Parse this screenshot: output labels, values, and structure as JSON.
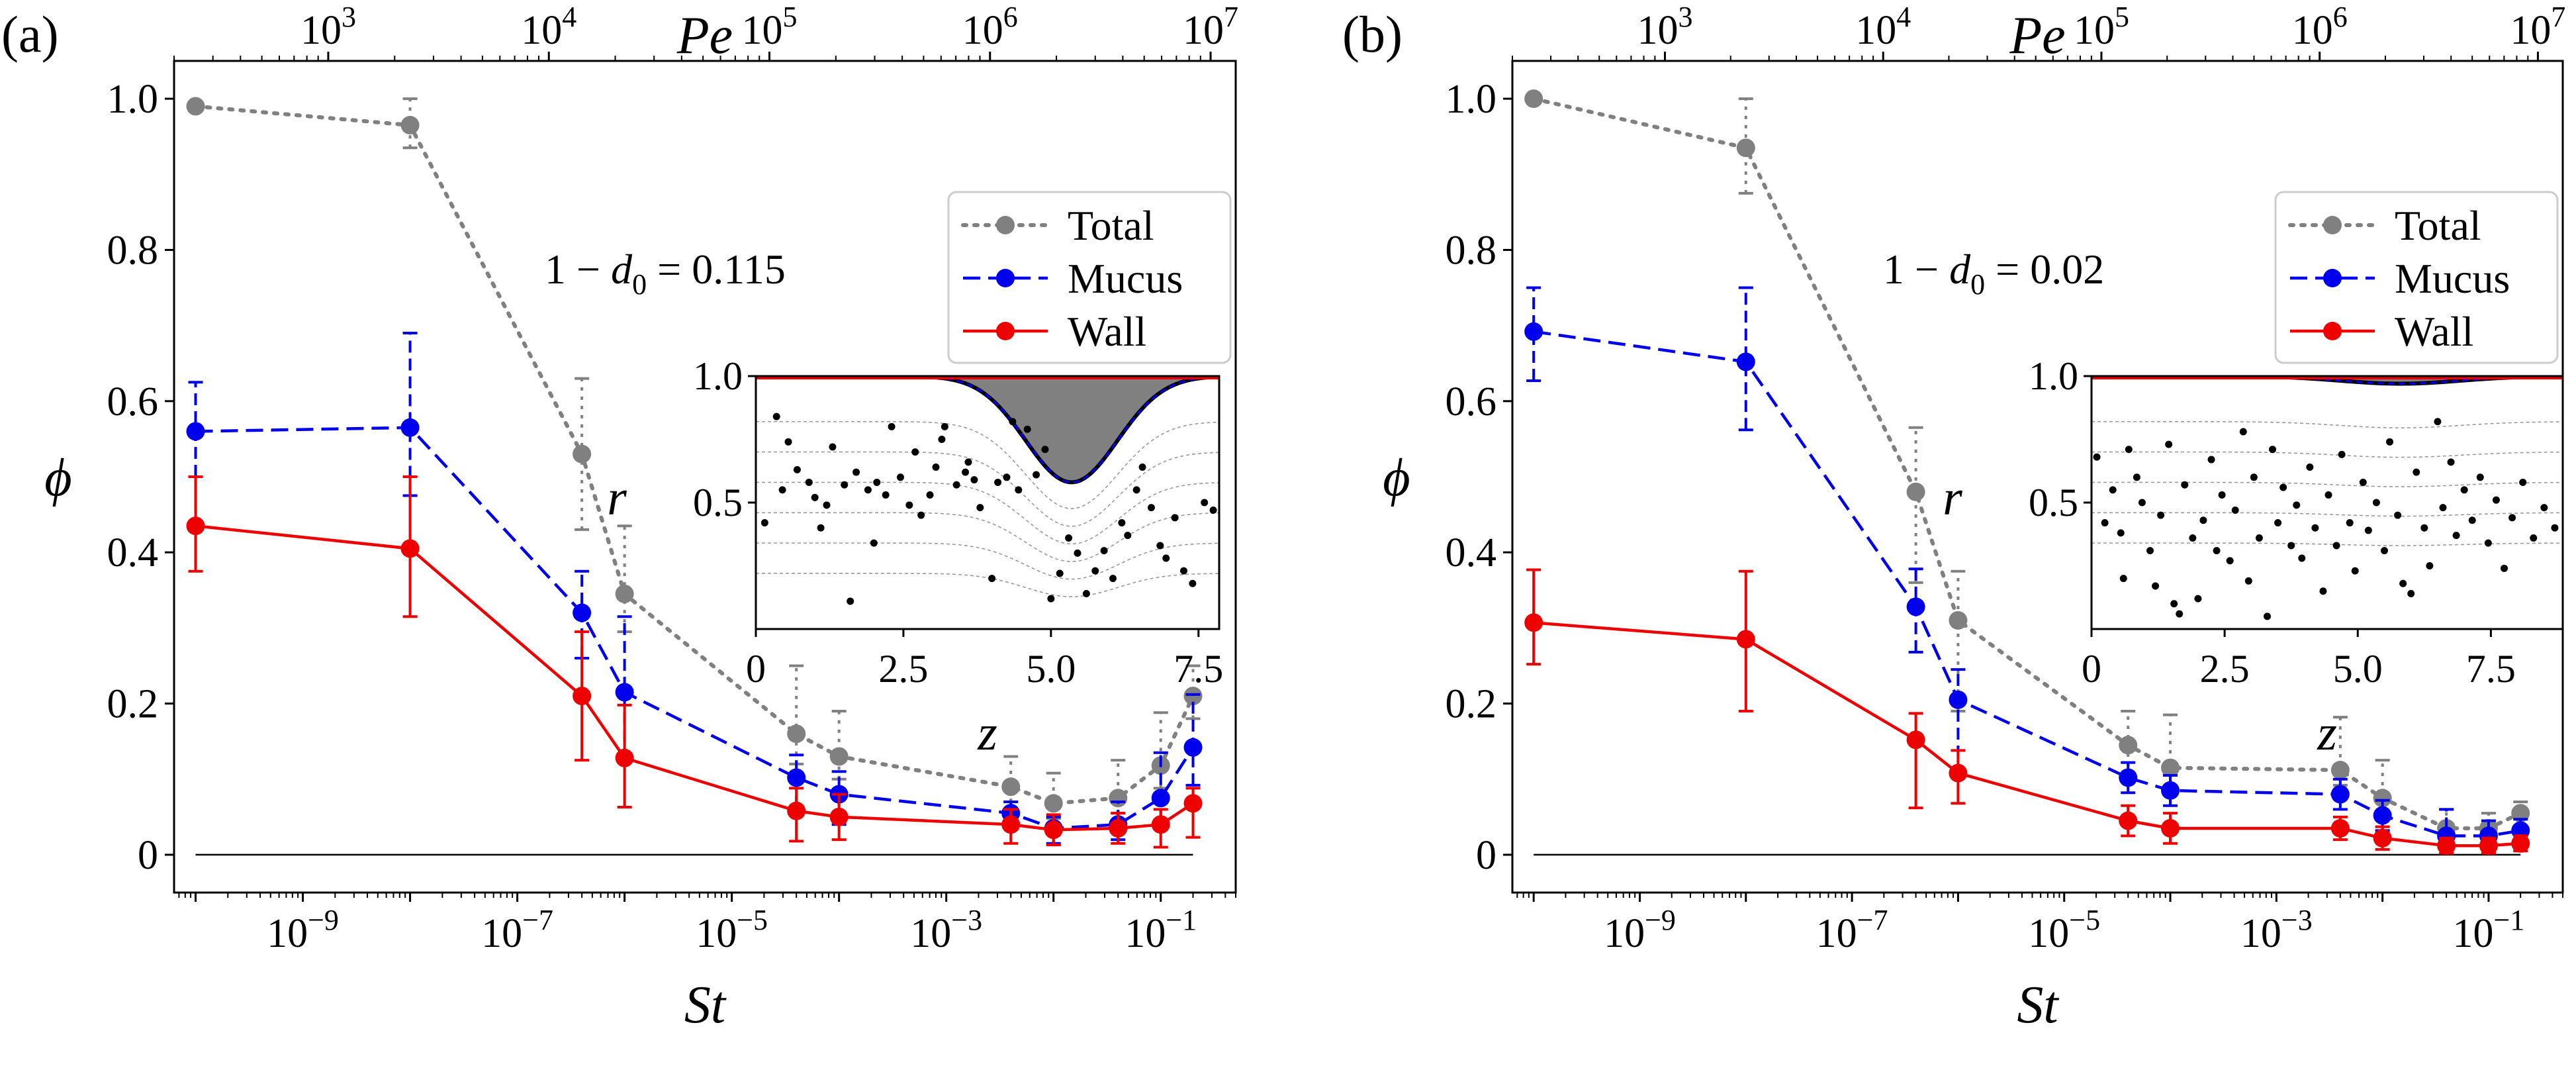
{
  "chart_data": [
    {
      "type": "line",
      "panel_label": "(a)",
      "xlabel": "St",
      "ylabel": "ϕ",
      "top_xlabel": "Pe",
      "x_scale": "log",
      "top_x_scale": "log",
      "xlim": [
        6.3e-11,
        0.5
      ],
      "ylim": [
        -0.05,
        1.05
      ],
      "top_xlim": [
        200,
        13000000.0
      ],
      "x_ticks": [
        1e-09,
        1e-07,
        1e-05,
        0.001,
        0.1
      ],
      "x_tick_labels": [
        {
          "b": "10",
          "e": "−9"
        },
        {
          "b": "10",
          "e": "−7"
        },
        {
          "b": "10",
          "e": "−5"
        },
        {
          "b": "10",
          "e": "−3"
        },
        {
          "b": "10",
          "e": "−1"
        }
      ],
      "y_ticks": [
        0,
        0.2,
        0.4,
        0.6,
        0.8,
        1.0
      ],
      "y_tick_labels": [
        "0",
        "0.2",
        "0.4",
        "0.6",
        "0.8",
        "1.0"
      ],
      "top_ticks": [
        1000,
        10000,
        100000,
        1000000,
        10000000
      ],
      "top_tick_labels": [
        {
          "b": "10",
          "e": "3"
        },
        {
          "b": "10",
          "e": "4"
        },
        {
          "b": "10",
          "e": "5"
        },
        {
          "b": "10",
          "e": "6"
        },
        {
          "b": "10",
          "e": "7"
        }
      ],
      "annotation": {
        "prefix": "1 − ",
        "var": "d",
        "sub": "0",
        "suffix": " = 0.115"
      },
      "legend_position": "top-right",
      "grid": false,
      "x": [
        1e-10,
        1e-08,
        4e-07,
        1e-06,
        4e-05,
        0.0001,
        0.004,
        0.01,
        0.04,
        0.1,
        0.2
      ],
      "series": [
        {
          "name": "Total",
          "color": "#808080",
          "style": "dotted",
          "values": [
            0.99,
            0.965,
            0.53,
            0.345,
            0.16,
            0.13,
            0.09,
            0.068,
            0.075,
            0.118,
            0.21
          ],
          "err_low": [
            0.0,
            0.03,
            0.1,
            0.05,
            0.04,
            0.03,
            0.02,
            0.02,
            0.02,
            0.03,
            0.03
          ],
          "err_high": [
            0.0,
            0.035,
            0.1,
            0.09,
            0.09,
            0.06,
            0.04,
            0.04,
            0.05,
            0.07,
            0.04
          ]
        },
        {
          "name": "Mucus",
          "color": "#0000ee",
          "style": "dashed",
          "values": [
            0.56,
            0.565,
            0.32,
            0.215,
            0.102,
            0.08,
            0.055,
            0.035,
            0.04,
            0.075,
            0.142
          ],
          "err_low": [
            0.06,
            0.09,
            0.06,
            0.09,
            0.04,
            0.04,
            0.02,
            0.02,
            0.02,
            0.03,
            0.05
          ],
          "err_high": [
            0.065,
            0.125,
            0.055,
            0.1,
            0.03,
            0.03,
            0.015,
            0.015,
            0.03,
            0.06,
            0.07
          ]
        },
        {
          "name": "Wall",
          "color": "#ee0000",
          "style": "solid",
          "values": [
            0.435,
            0.405,
            0.21,
            0.128,
            0.058,
            0.05,
            0.04,
            0.033,
            0.035,
            0.04,
            0.068
          ],
          "err_low": [
            0.06,
            0.09,
            0.085,
            0.065,
            0.04,
            0.03,
            0.025,
            0.02,
            0.02,
            0.03,
            0.045
          ],
          "err_high": [
            0.065,
            0.095,
            0.085,
            0.07,
            0.03,
            0.03,
            0.02,
            0.02,
            0.02,
            0.02,
            0.02
          ]
        }
      ],
      "inset": {
        "type": "scatter",
        "xlabel": "z",
        "ylabel": "r",
        "xlim": [
          0,
          7.85
        ],
        "ylim": [
          0,
          1.0
        ],
        "x_ticks": [
          0,
          2.5,
          5.0,
          7.5
        ],
        "x_tick_labels": [
          "0",
          "2.5",
          "5.0",
          "7.5"
        ],
        "y_ticks": [
          0.5,
          1.0
        ],
        "y_tick_labels": [
          "0.5",
          "1.0"
        ],
        "wall_profile": {
          "amplitude": 0.42,
          "center": 5.35,
          "width": 1.1
        },
        "streamlines": [
          0.82,
          0.7,
          0.58,
          0.46,
          0.34,
          0.22
        ],
        "points": [
          [
            0.35,
            0.84
          ],
          [
            0.7,
            0.63
          ],
          [
            0.45,
            0.55
          ],
          [
            0.9,
            0.58
          ],
          [
            1.0,
            0.52
          ],
          [
            1.2,
            0.49
          ],
          [
            1.3,
            0.72
          ],
          [
            1.5,
            0.57
          ],
          [
            1.6,
            0.11
          ],
          [
            1.7,
            0.62
          ],
          [
            1.9,
            0.55
          ],
          [
            2.05,
            0.58
          ],
          [
            2.2,
            0.53
          ],
          [
            2.3,
            0.8
          ],
          [
            2.45,
            0.6
          ],
          [
            2.6,
            0.49
          ],
          [
            2.7,
            0.7
          ],
          [
            2.8,
            0.45
          ],
          [
            2.95,
            0.53
          ],
          [
            3.05,
            0.64
          ],
          [
            3.15,
            0.75
          ],
          [
            3.2,
            0.8
          ],
          [
            3.4,
            0.57
          ],
          [
            3.55,
            0.62
          ],
          [
            3.7,
            0.59
          ],
          [
            3.8,
            0.48
          ],
          [
            4.0,
            0.2
          ],
          [
            4.1,
            0.58
          ],
          [
            4.25,
            0.6
          ],
          [
            4.35,
            0.82
          ],
          [
            4.45,
            0.55
          ],
          [
            4.6,
            0.79
          ],
          [
            4.75,
            0.61
          ],
          [
            4.9,
            0.71
          ],
          [
            5.0,
            0.12
          ],
          [
            5.15,
            0.22
          ],
          [
            5.3,
            0.36
          ],
          [
            5.45,
            0.3
          ],
          [
            5.6,
            0.14
          ],
          [
            5.75,
            0.23
          ],
          [
            5.9,
            0.31
          ],
          [
            6.05,
            0.2
          ],
          [
            6.2,
            0.42
          ],
          [
            6.3,
            0.37
          ],
          [
            6.45,
            0.55
          ],
          [
            6.55,
            0.64
          ],
          [
            6.7,
            0.48
          ],
          [
            6.85,
            0.33
          ],
          [
            6.95,
            0.28
          ],
          [
            7.1,
            0.44
          ],
          [
            7.25,
            0.23
          ],
          [
            7.4,
            0.18
          ],
          [
            7.6,
            0.5
          ],
          [
            7.75,
            0.47
          ],
          [
            0.55,
            0.74
          ],
          [
            1.1,
            0.4
          ],
          [
            2.0,
            0.34
          ],
          [
            3.6,
            0.66
          ],
          [
            0.15,
            0.42
          ]
        ]
      }
    },
    {
      "type": "line",
      "panel_label": "(b)",
      "xlabel": "St",
      "ylabel": "ϕ",
      "top_xlabel": "Pe",
      "x_scale": "log",
      "top_x_scale": "log",
      "xlim": [
        6.3e-11,
        0.5
      ],
      "ylim": [
        -0.05,
        1.05
      ],
      "top_xlim": [
        200,
        13000000.0
      ],
      "x_ticks": [
        1e-09,
        1e-07,
        1e-05,
        0.001,
        0.1
      ],
      "x_tick_labels": [
        {
          "b": "10",
          "e": "−9"
        },
        {
          "b": "10",
          "e": "−7"
        },
        {
          "b": "10",
          "e": "−5"
        },
        {
          "b": "10",
          "e": "−3"
        },
        {
          "b": "10",
          "e": "−1"
        }
      ],
      "y_ticks": [
        0,
        0.2,
        0.4,
        0.6,
        0.8,
        1.0
      ],
      "y_tick_labels": [
        "0",
        "0.2",
        "0.4",
        "0.6",
        "0.8",
        "1.0"
      ],
      "top_ticks": [
        1000,
        10000,
        100000,
        1000000,
        10000000
      ],
      "top_tick_labels": [
        {
          "b": "10",
          "e": "3"
        },
        {
          "b": "10",
          "e": "4"
        },
        {
          "b": "10",
          "e": "5"
        },
        {
          "b": "10",
          "e": "6"
        },
        {
          "b": "10",
          "e": "7"
        }
      ],
      "annotation": {
        "prefix": "1 − ",
        "var": "d",
        "sub": "0",
        "suffix": " = 0.02"
      },
      "legend_position": "top-right",
      "grid": false,
      "x": [
        1e-10,
        1e-08,
        4e-07,
        1e-06,
        4e-05,
        0.0001,
        0.004,
        0.01,
        0.04,
        0.1,
        0.2
      ],
      "series": [
        {
          "name": "Total",
          "color": "#808080",
          "style": "dotted",
          "values": [
            1.0,
            0.935,
            0.48,
            0.31,
            0.145,
            0.115,
            0.112,
            0.075,
            0.035,
            0.035,
            0.055
          ],
          "err_low": [
            0.0,
            0.06,
            0.12,
            0.12,
            0.04,
            0.03,
            0.02,
            0.02,
            0.02,
            0.02,
            0.02
          ],
          "err_high": [
            0.0,
            0.065,
            0.085,
            0.065,
            0.045,
            0.07,
            0.07,
            0.05,
            0.025,
            0.02,
            0.015
          ]
        },
        {
          "name": "Mucus",
          "color": "#0000ee",
          "style": "dashed",
          "values": [
            0.692,
            0.652,
            0.328,
            0.205,
            0.102,
            0.085,
            0.08,
            0.052,
            0.025,
            0.025,
            0.032
          ],
          "err_low": [
            0.065,
            0.09,
            0.06,
            0.1,
            0.02,
            0.02,
            0.02,
            0.02,
            0.015,
            0.015,
            0.015
          ],
          "err_high": [
            0.058,
            0.098,
            0.05,
            0.04,
            0.02,
            0.02,
            0.02,
            0.02,
            0.035,
            0.02,
            0.015
          ]
        },
        {
          "name": "Wall",
          "color": "#ee0000",
          "style": "solid",
          "values": [
            0.307,
            0.285,
            0.152,
            0.108,
            0.045,
            0.035,
            0.035,
            0.022,
            0.012,
            0.012,
            0.015
          ],
          "err_low": [
            0.055,
            0.095,
            0.09,
            0.04,
            0.02,
            0.02,
            0.015,
            0.015,
            0.01,
            0.01,
            0.01
          ],
          "err_high": [
            0.07,
            0.09,
            0.035,
            0.03,
            0.02,
            0.02,
            0.015,
            0.015,
            0.01,
            0.01,
            0.01
          ]
        }
      ],
      "inset": {
        "type": "scatter",
        "xlabel": "z",
        "ylabel": "r",
        "xlim": [
          0,
          8.85
        ],
        "ylim": [
          0,
          1.0
        ],
        "x_ticks": [
          0,
          2.5,
          5.0,
          7.5
        ],
        "x_tick_labels": [
          "0",
          "2.5",
          "5.0",
          "7.5"
        ],
        "y_ticks": [
          0.5,
          1.0
        ],
        "y_tick_labels": [
          "0.5",
          "1.0"
        ],
        "wall_profile": {
          "amplitude": 0.03,
          "center": 5.8,
          "width": 1.6
        },
        "streamlines": [
          0.82,
          0.7,
          0.58,
          0.46,
          0.34
        ],
        "points": [
          [
            0.1,
            0.68
          ],
          [
            0.25,
            0.42
          ],
          [
            0.4,
            0.55
          ],
          [
            0.55,
            0.38
          ],
          [
            0.6,
            0.2
          ],
          [
            0.7,
            0.71
          ],
          [
            0.85,
            0.6
          ],
          [
            0.95,
            0.5
          ],
          [
            1.1,
            0.31
          ],
          [
            1.2,
            0.17
          ],
          [
            1.3,
            0.45
          ],
          [
            1.45,
            0.73
          ],
          [
            1.55,
            0.1
          ],
          [
            1.65,
            0.06
          ],
          [
            1.75,
            0.57
          ],
          [
            1.9,
            0.36
          ],
          [
            2.0,
            0.12
          ],
          [
            2.1,
            0.43
          ],
          [
            2.25,
            0.67
          ],
          [
            2.35,
            0.31
          ],
          [
            2.45,
            0.53
          ],
          [
            2.6,
            0.27
          ],
          [
            2.7,
            0.47
          ],
          [
            2.85,
            0.78
          ],
          [
            2.95,
            0.19
          ],
          [
            3.05,
            0.6
          ],
          [
            3.15,
            0.36
          ],
          [
            3.3,
            0.05
          ],
          [
            3.4,
            0.71
          ],
          [
            3.5,
            0.42
          ],
          [
            3.6,
            0.56
          ],
          [
            3.75,
            0.33
          ],
          [
            3.85,
            0.49
          ],
          [
            3.95,
            0.28
          ],
          [
            4.1,
            0.64
          ],
          [
            4.2,
            0.4
          ],
          [
            4.35,
            0.15
          ],
          [
            4.45,
            0.53
          ],
          [
            4.6,
            0.33
          ],
          [
            4.7,
            0.69
          ],
          [
            4.85,
            0.42
          ],
          [
            4.95,
            0.23
          ],
          [
            5.1,
            0.58
          ],
          [
            5.2,
            0.39
          ],
          [
            5.35,
            0.5
          ],
          [
            5.5,
            0.31
          ],
          [
            5.6,
            0.74
          ],
          [
            5.75,
            0.45
          ],
          [
            5.85,
            0.18
          ],
          [
            6.0,
            0.14
          ],
          [
            6.1,
            0.62
          ],
          [
            6.25,
            0.4
          ],
          [
            6.35,
            0.25
          ],
          [
            6.5,
            0.82
          ],
          [
            6.6,
            0.48
          ],
          [
            6.75,
            0.66
          ],
          [
            6.85,
            0.37
          ],
          [
            7.0,
            0.55
          ],
          [
            7.15,
            0.43
          ],
          [
            7.3,
            0.6
          ],
          [
            7.45,
            0.34
          ],
          [
            7.6,
            0.51
          ],
          [
            7.75,
            0.24
          ],
          [
            7.9,
            0.44
          ],
          [
            8.1,
            0.58
          ],
          [
            8.3,
            0.36
          ],
          [
            8.5,
            0.48
          ],
          [
            8.7,
            0.4
          ]
        ]
      }
    }
  ]
}
